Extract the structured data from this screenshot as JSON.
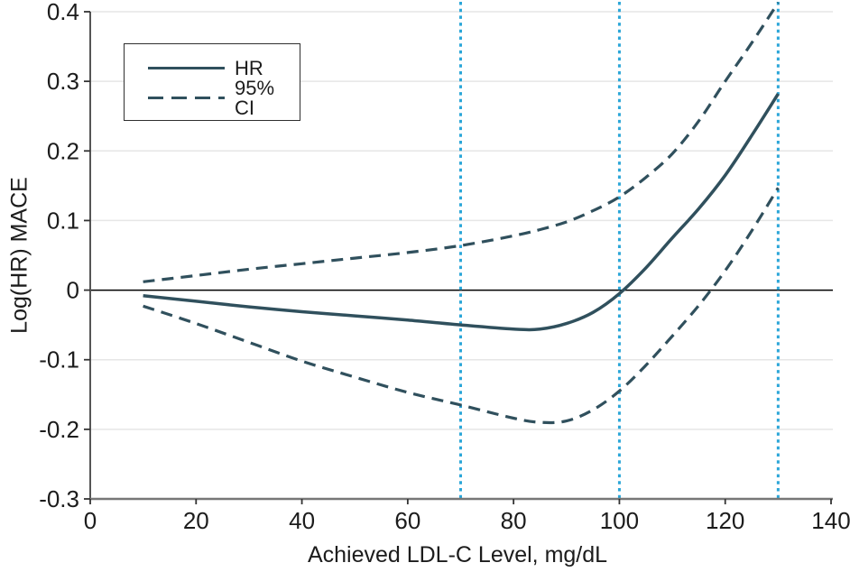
{
  "chart_data": {
    "type": "line",
    "title": "",
    "xlabel": "Achieved LDL-C Level, mg/dL",
    "ylabel": "Log(HR) MACE",
    "xlim": [
      0,
      140
    ],
    "ylim": [
      -0.3,
      0.4
    ],
    "x_ticks": [
      0,
      20,
      40,
      60,
      80,
      100,
      120,
      140
    ],
    "x_tick_labels": [
      "0",
      "20",
      "40",
      "60",
      "80",
      "100",
      "120",
      "140"
    ],
    "y_ticks": [
      0.4,
      0.3,
      0.2,
      0.1,
      0,
      -0.1,
      -0.2,
      -0.3
    ],
    "y_tick_labels": [
      "0.4",
      "0.3",
      "0.2",
      "0.1",
      "0",
      "-0.1",
      "-0.2",
      "-0.3"
    ],
    "grid": "horizontal",
    "legend_position": "top-left",
    "legend": {
      "entries": [
        {
          "label": "HR",
          "style": "solid"
        },
        {
          "label": "95% CI",
          "style": "dashed"
        }
      ]
    },
    "reference_lines": {
      "horizontal_y": 0,
      "vertical_x": [
        70,
        100,
        130
      ]
    },
    "x": [
      10,
      20,
      30,
      40,
      50,
      60,
      70,
      80,
      85,
      90,
      95,
      100,
      105,
      110,
      115,
      120,
      125,
      130
    ],
    "series": [
      {
        "name": "HR",
        "style": "solid",
        "values": [
          -0.008,
          -0.016,
          -0.024,
          -0.031,
          -0.037,
          -0.043,
          -0.05,
          -0.056,
          -0.056,
          -0.048,
          -0.032,
          -0.005,
          0.032,
          0.075,
          0.117,
          0.165,
          0.222,
          0.282
        ]
      },
      {
        "name": "95% CI upper",
        "style": "dashed",
        "values": [
          0.012,
          0.021,
          0.03,
          0.038,
          0.046,
          0.054,
          0.064,
          0.078,
          0.087,
          0.098,
          0.114,
          0.134,
          0.162,
          0.196,
          0.243,
          0.3,
          0.355,
          0.413
        ]
      },
      {
        "name": "95% CI lower",
        "style": "dashed",
        "values": [
          -0.023,
          -0.048,
          -0.075,
          -0.102,
          -0.125,
          -0.147,
          -0.165,
          -0.184,
          -0.19,
          -0.188,
          -0.172,
          -0.145,
          -0.108,
          -0.066,
          -0.022,
          0.028,
          0.085,
          0.147
        ]
      }
    ],
    "colors": {
      "series_line": "#30505d",
      "vertical_reference": "#2ba6d8",
      "gridline": "#e6e6e6",
      "zero_line": "#000000",
      "axis_line": "#777777",
      "tick_mark": "#333333",
      "text": "#1c1c1c"
    }
  }
}
